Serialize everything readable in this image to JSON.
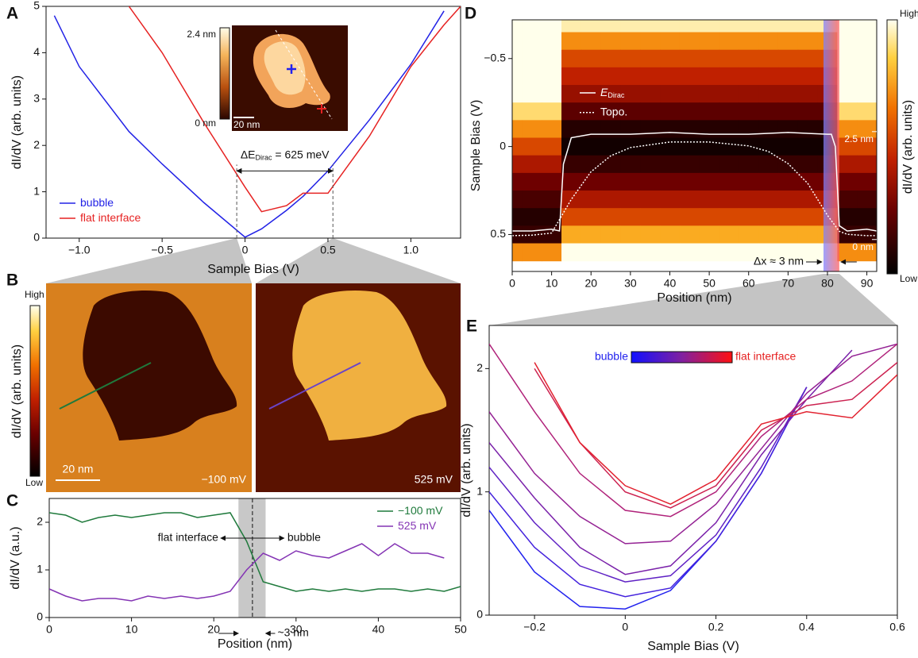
{
  "chart_data": [
    {
      "type": "line",
      "panel_label": "A",
      "xlabel": "Sample Bias (V)",
      "ylabel": "dI/dV (arb. units)",
      "x": [
        -1.15,
        -1.0,
        -0.7,
        -0.5,
        -0.25,
        0,
        0.1,
        0.25,
        0.35,
        0.5,
        0.75,
        1.0,
        1.2,
        1.3
      ],
      "series": [
        {
          "name": "bubble",
          "color": "#2222e6",
          "values": [
            4.8,
            3.7,
            2.3,
            1.6,
            0.77,
            0.02,
            0.2,
            0.6,
            0.9,
            1.45,
            2.55,
            3.75,
            4.9,
            null
          ]
        },
        {
          "name": "flat interface",
          "color": "#e62222",
          "values": [
            null,
            null,
            5.0,
            4.0,
            2.5,
            1.1,
            0.57,
            0.7,
            0.97,
            0.97,
            2.2,
            3.7,
            4.6,
            5.0
          ]
        }
      ],
      "xlim": [
        -1.2,
        1.3
      ],
      "ylim": [
        0,
        5
      ],
      "xticks": [
        {
          "value": -1,
          "label": "−1.0"
        },
        {
          "value": -0.5,
          "label": "−0.5"
        },
        0,
        0.5,
        {
          "value": 1,
          "label": "1.0"
        }
      ],
      "yticks": [
        0,
        1,
        2,
        3,
        4,
        5
      ],
      "legend": "lower left",
      "vlines": [
        -0.05,
        0.53
      ],
      "annotation": {
        "prefix": "ΔE",
        "sub": "Dirac",
        "suffix": " = 625 meV"
      },
      "inset": {
        "top": "2.4 nm",
        "bottom": "0 nm",
        "scale": "20 nm"
      }
    },
    {
      "type": "image",
      "panel_label": "B",
      "colorbar": {
        "high": "High",
        "low": "Low",
        "label": "dI/dV (arb. units)"
      },
      "scale": "20 nm",
      "maps": [
        {
          "label": "−100 mV",
          "line_color": "#1f7a3c"
        },
        {
          "label": "525 mV",
          "line_color": "#6a44c8"
        }
      ]
    },
    {
      "type": "line",
      "panel_label": "C",
      "xlabel": "Position (nm)",
      "ylabel": "dI/dV (a.u.)",
      "x": [
        0,
        2,
        4,
        6,
        8,
        10,
        12,
        14,
        16,
        18,
        20,
        22,
        24,
        26,
        28,
        30,
        32,
        34,
        36,
        38,
        40,
        42,
        44,
        46,
        48,
        50
      ],
      "series": [
        {
          "name": "−100 mV",
          "color": "#1f7a3c",
          "values": [
            2.2,
            2.15,
            2.0,
            2.1,
            2.15,
            2.1,
            2.15,
            2.2,
            2.2,
            2.1,
            2.15,
            2.2,
            1.6,
            0.75,
            0.65,
            0.55,
            0.6,
            0.55,
            0.6,
            0.55,
            0.6,
            0.6,
            0.55,
            0.6,
            0.55,
            0.65
          ]
        },
        {
          "name": "525 mV",
          "color": "#8434b4",
          "values": [
            0.6,
            0.45,
            0.35,
            0.4,
            0.4,
            0.35,
            0.45,
            0.4,
            0.45,
            0.4,
            0.45,
            0.55,
            1.0,
            1.35,
            1.2,
            1.4,
            1.3,
            1.25,
            1.4,
            1.55,
            1.3,
            1.55,
            1.35,
            1.35,
            1.25,
            null
          ]
        }
      ],
      "xlim": [
        0,
        50
      ],
      "ylim": [
        0,
        2.5
      ],
      "xticks": [
        0,
        10,
        20,
        30,
        40,
        50
      ],
      "yticks": [
        0,
        1,
        2
      ],
      "legend": "upper right",
      "band": [
        23,
        26.3
      ],
      "vlines": [
        24.7
      ],
      "annotations": {
        "left": "flat interface",
        "right": "bubble",
        "width": "~3 nm"
      }
    },
    {
      "type": "heatmap",
      "panel_label": "D",
      "xlabel": "Position (nm)",
      "ylabel": "Sample Bias (V)",
      "xlim": [
        0,
        92.5
      ],
      "ylim": [
        -0.72,
        0.71
      ],
      "y_inverted": true,
      "xticks": [
        0,
        10,
        20,
        30,
        40,
        50,
        60,
        70,
        80,
        90
      ],
      "yticks": [
        {
          "value": -0.5,
          "label": "−0.5"
        },
        0,
        0.5
      ],
      "y2lim": [
        -0.74,
        5.09
      ],
      "y2ticks": [
        {
          "value": 2.5,
          "label": "2.5 nm"
        },
        {
          "value": 0,
          "label": "0 nm"
        }
      ],
      "heatmap": {
        "x": [
          0,
          5,
          10,
          15,
          20,
          25,
          30,
          35,
          40,
          45,
          50,
          55,
          60,
          65,
          70,
          75,
          80,
          85,
          90
        ],
        "y": [
          -0.7,
          -0.6,
          -0.5,
          -0.4,
          -0.3,
          -0.2,
          -0.1,
          0,
          0.1,
          0.2,
          0.3,
          0.4,
          0.5,
          0.6
        ],
        "z": [
          [
            1,
            1,
            1,
            0.95,
            0.95,
            0.95,
            0.95,
            0.95,
            0.95,
            0.95,
            0.95,
            0.95,
            0.95,
            0.95,
            0.95,
            0.95,
            0.95,
            1,
            1
          ],
          [
            1,
            1,
            1,
            0.75,
            0.75,
            0.75,
            0.75,
            0.75,
            0.75,
            0.75,
            0.75,
            0.75,
            0.75,
            0.75,
            0.75,
            0.75,
            0.75,
            1,
            1
          ],
          [
            1,
            1,
            1,
            0.6,
            0.6,
            0.6,
            0.6,
            0.6,
            0.6,
            0.6,
            0.6,
            0.6,
            0.6,
            0.6,
            0.6,
            0.6,
            0.6,
            1,
            1
          ],
          [
            1,
            1,
            1,
            0.5,
            0.5,
            0.5,
            0.5,
            0.5,
            0.5,
            0.5,
            0.5,
            0.5,
            0.5,
            0.5,
            0.5,
            0.5,
            0.5,
            1,
            1
          ],
          [
            1,
            1,
            1,
            0.4,
            0.4,
            0.4,
            0.4,
            0.4,
            0.4,
            0.4,
            0.4,
            0.4,
            0.4,
            0.4,
            0.4,
            0.4,
            0.4,
            1,
            1
          ],
          [
            0.9,
            0.9,
            0.9,
            0.25,
            0.25,
            0.25,
            0.25,
            0.25,
            0.25,
            0.25,
            0.25,
            0.25,
            0.25,
            0.25,
            0.25,
            0.25,
            0.25,
            0.9,
            0.9
          ],
          [
            0.75,
            0.75,
            0.75,
            0.1,
            0.1,
            0.1,
            0.1,
            0.1,
            0.1,
            0.1,
            0.1,
            0.1,
            0.1,
            0.1,
            0.1,
            0.1,
            0.1,
            0.75,
            0.75
          ],
          [
            0.6,
            0.6,
            0.6,
            0.05,
            0.05,
            0.05,
            0.05,
            0.05,
            0.05,
            0.05,
            0.05,
            0.05,
            0.05,
            0.05,
            0.05,
            0.05,
            0.05,
            0.6,
            0.6
          ],
          [
            0.45,
            0.45,
            0.45,
            0.15,
            0.15,
            0.15,
            0.15,
            0.15,
            0.15,
            0.15,
            0.15,
            0.15,
            0.15,
            0.15,
            0.15,
            0.15,
            0.15,
            0.45,
            0.45
          ],
          [
            0.3,
            0.3,
            0.3,
            0.3,
            0.3,
            0.3,
            0.3,
            0.3,
            0.3,
            0.3,
            0.3,
            0.3,
            0.3,
            0.3,
            0.3,
            0.3,
            0.3,
            0.3,
            0.3
          ],
          [
            0.2,
            0.2,
            0.2,
            0.45,
            0.45,
            0.45,
            0.45,
            0.45,
            0.45,
            0.45,
            0.45,
            0.45,
            0.45,
            0.45,
            0.45,
            0.45,
            0.45,
            0.2,
            0.2
          ],
          [
            0.1,
            0.1,
            0.1,
            0.6,
            0.6,
            0.6,
            0.6,
            0.6,
            0.6,
            0.6,
            0.6,
            0.6,
            0.6,
            0.6,
            0.6,
            0.6,
            0.6,
            0.1,
            0.1
          ],
          [
            0.15,
            0.15,
            0.15,
            0.8,
            0.8,
            0.8,
            0.8,
            0.8,
            0.8,
            0.8,
            0.8,
            0.8,
            0.8,
            0.8,
            0.8,
            0.8,
            0.8,
            0.15,
            0.15
          ],
          [
            0.75,
            0.75,
            0.75,
            1,
            1,
            1,
            1,
            1,
            1,
            1,
            1,
            1,
            1,
            1,
            1,
            1,
            1,
            0.75,
            0.75
          ]
        ]
      },
      "series": [
        {
          "name": "E",
          "name_sub": "Dirac",
          "color": "#ffffff",
          "dash": false,
          "x": [
            0,
            5,
            10,
            12,
            13,
            15,
            20,
            30,
            40,
            50,
            60,
            70,
            80,
            81,
            82,
            83,
            85,
            90,
            92.5
          ],
          "values": [
            0.48,
            0.48,
            0.47,
            0.48,
            0.1,
            -0.05,
            -0.07,
            -0.07,
            -0.08,
            -0.07,
            -0.07,
            -0.08,
            -0.07,
            -0.07,
            0,
            0.45,
            0.48,
            0.47,
            0.48
          ]
        },
        {
          "name": "Topo.",
          "color": "#ffffff",
          "dash": true,
          "axis": "y2",
          "x": [
            0,
            5,
            10,
            15,
            20,
            25,
            30,
            40,
            50,
            60,
            65,
            70,
            75,
            80,
            83,
            85,
            90,
            92.5
          ],
          "values": [
            0.09,
            0.1,
            0.15,
            0.93,
            1.57,
            1.94,
            2.13,
            2.26,
            2.26,
            2.17,
            2.04,
            1.76,
            1.3,
            0.56,
            0.19,
            0.12,
            0.09,
            0.09
          ]
        }
      ],
      "legend": "upper left",
      "band": [
        79,
        83
      ],
      "annotation": "Δx ≈ 3 nm",
      "colorbar": {
        "high": "High",
        "low": "Low",
        "label": "dI/dV (arb. units)"
      }
    },
    {
      "type": "line",
      "panel_label": "E",
      "xlabel": "Sample Bias (V)",
      "ylabel": "dI/dV (arb. units)",
      "x": [
        -0.3,
        -0.2,
        -0.1,
        0,
        0.1,
        0.2,
        0.3,
        0.4,
        0.5,
        0.6
      ],
      "series": [
        {
          "color": "#2222ee",
          "values": [
            0.85,
            0.35,
            0.07,
            0.05,
            0.2,
            0.6,
            1.15,
            1.85,
            null,
            null
          ]
        },
        {
          "color": "#4422dd",
          "values": [
            1.0,
            0.55,
            0.25,
            0.15,
            0.22,
            0.6,
            1.15,
            1.85,
            null,
            null
          ]
        },
        {
          "color": "#5f22c4",
          "values": [
            1.2,
            0.75,
            0.4,
            0.27,
            0.32,
            0.65,
            1.2,
            1.85,
            null,
            null
          ]
        },
        {
          "color": "#7a22aa",
          "values": [
            1.4,
            0.95,
            0.55,
            0.33,
            0.4,
            0.75,
            1.3,
            1.75,
            2.15,
            null
          ]
        },
        {
          "color": "#942294",
          "values": [
            1.65,
            1.15,
            0.8,
            0.58,
            0.6,
            0.9,
            1.35,
            1.8,
            2.1,
            2.2
          ]
        },
        {
          "color": "#b0227a",
          "values": [
            2.2,
            1.65,
            1.15,
            0.85,
            0.8,
            1.0,
            1.45,
            1.75,
            1.9,
            2.2
          ]
        },
        {
          "color": "#cc2250",
          "values": [
            null,
            2.0,
            1.4,
            1.0,
            0.87,
            1.05,
            1.5,
            1.7,
            1.75,
            2.05
          ]
        },
        {
          "color": "#e22230",
          "values": [
            null,
            2.05,
            1.4,
            1.05,
            0.9,
            1.1,
            1.55,
            1.65,
            1.6,
            1.95
          ]
        }
      ],
      "xlim": [
        -0.3,
        0.6
      ],
      "ylim": [
        0,
        2.35
      ],
      "xticks": [
        {
          "value": -0.2,
          "label": "−0.2"
        },
        0,
        0.2,
        0.4,
        0.6
      ],
      "yticks": [
        0,
        1,
        2
      ],
      "gradient_legend": {
        "left": "bubble",
        "right": "flat interface"
      }
    }
  ]
}
